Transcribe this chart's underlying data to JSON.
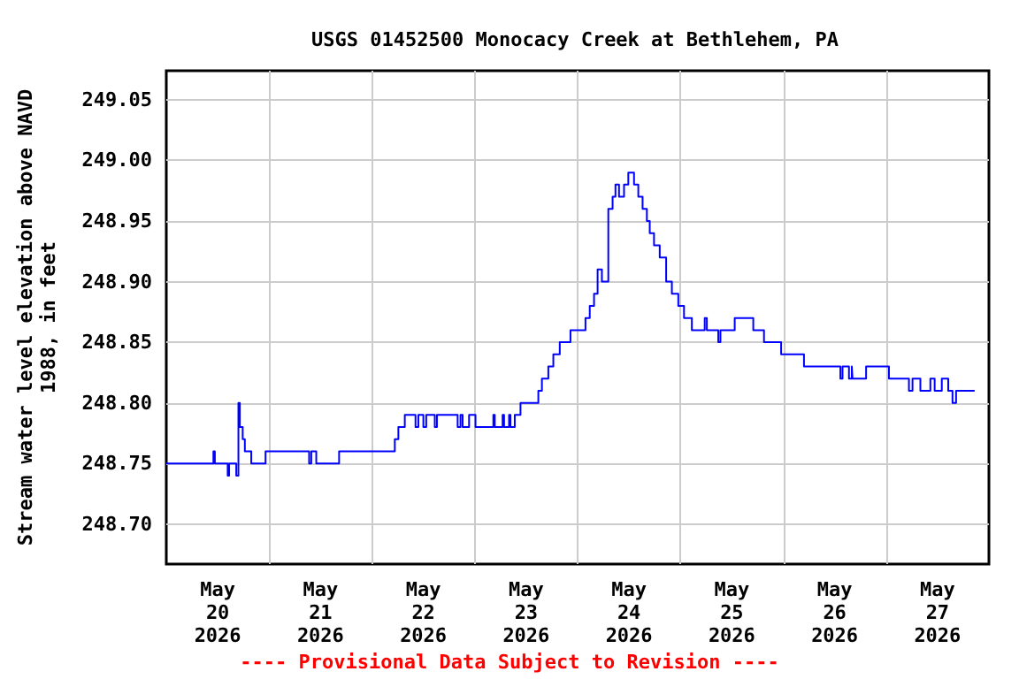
{
  "chart_data": {
    "type": "step",
    "title": "USGS 01452500 Monocacy Creek at Bethlehem, PA",
    "ylabel": "Stream water level elevation above NAVD\n1988, in feet",
    "annotations": [
      "---- Provisional Data Subject to Revision ----"
    ],
    "x": [
      "2026-05-20T00:00",
      "2026-05-20T11:00",
      "2026-05-20T11:20",
      "2026-05-20T14:20",
      "2026-05-20T14:40",
      "2026-05-20T16:20",
      "2026-05-20T16:50",
      "2026-05-20T17:10",
      "2026-05-20T17:50",
      "2026-05-20T18:20",
      "2026-05-20T19:50",
      "2026-05-20T23:10",
      "2026-05-21T09:20",
      "2026-05-21T09:50",
      "2026-05-21T11:00",
      "2026-05-21T16:20",
      "2026-05-22T05:20",
      "2026-05-22T06:10",
      "2026-05-22T07:40",
      "2026-05-22T10:10",
      "2026-05-22T10:50",
      "2026-05-22T12:00",
      "2026-05-22T12:40",
      "2026-05-22T14:40",
      "2026-05-22T15:10",
      "2026-05-22T20:00",
      "2026-05-22T20:40",
      "2026-05-22T21:10",
      "2026-05-22T22:40",
      "2026-05-23T00:10",
      "2026-05-23T04:20",
      "2026-05-23T04:40",
      "2026-05-23T06:30",
      "2026-05-23T06:50",
      "2026-05-23T08:00",
      "2026-05-23T08:20",
      "2026-05-23T09:20",
      "2026-05-23T10:40",
      "2026-05-23T14:50",
      "2026-05-23T15:40",
      "2026-05-23T17:10",
      "2026-05-23T18:20",
      "2026-05-23T19:50",
      "2026-05-23T22:20",
      "2026-05-24T01:50",
      "2026-05-24T02:50",
      "2026-05-24T03:50",
      "2026-05-24T04:40",
      "2026-05-24T05:40",
      "2026-05-24T07:10",
      "2026-05-24T08:10",
      "2026-05-24T08:50",
      "2026-05-24T09:40",
      "2026-05-24T10:50",
      "2026-05-24T11:50",
      "2026-05-24T13:10",
      "2026-05-24T14:10",
      "2026-05-24T15:10",
      "2026-05-24T16:10",
      "2026-05-24T16:50",
      "2026-05-24T17:50",
      "2026-05-24T19:10",
      "2026-05-24T20:40",
      "2026-05-24T22:00",
      "2026-05-24T23:30",
      "2026-05-25T00:50",
      "2026-05-25T02:40",
      "2026-05-25T05:40",
      "2026-05-25T06:10",
      "2026-05-25T08:50",
      "2026-05-25T09:20",
      "2026-05-25T12:40",
      "2026-05-25T17:00",
      "2026-05-25T19:30",
      "2026-05-25T23:30",
      "2026-05-26T04:50",
      "2026-05-26T13:20",
      "2026-05-26T13:50",
      "2026-05-26T15:20",
      "2026-05-26T16:00",
      "2026-05-26T16:10",
      "2026-05-26T19:20",
      "2026-05-27T00:40",
      "2026-05-27T05:20",
      "2026-05-27T06:10",
      "2026-05-27T08:00",
      "2026-05-27T10:20",
      "2026-05-27T11:20",
      "2026-05-27T13:00",
      "2026-05-27T14:30",
      "2026-05-27T15:30",
      "2026-05-27T16:20",
      "2026-05-27T20:40"
    ],
    "series": [
      {
        "color": "#0000ff",
        "values": [
          248.75,
          248.76,
          248.75,
          248.74,
          248.75,
          248.74,
          248.8,
          248.78,
          248.77,
          248.76,
          248.75,
          248.76,
          248.75,
          248.76,
          248.75,
          248.76,
          248.77,
          248.78,
          248.79,
          248.78,
          248.79,
          248.78,
          248.79,
          248.78,
          248.79,
          248.78,
          248.79,
          248.78,
          248.79,
          248.78,
          248.79,
          248.78,
          248.79,
          248.78,
          248.79,
          248.78,
          248.79,
          248.8,
          248.81,
          248.82,
          248.83,
          248.84,
          248.85,
          248.86,
          248.87,
          248.88,
          248.89,
          248.91,
          248.9,
          248.96,
          248.97,
          248.98,
          248.97,
          248.98,
          248.99,
          248.98,
          248.97,
          248.96,
          248.95,
          248.94,
          248.93,
          248.92,
          248.9,
          248.89,
          248.88,
          248.87,
          248.86,
          248.87,
          248.86,
          248.85,
          248.86,
          248.87,
          248.86,
          248.85,
          248.84,
          248.83,
          248.82,
          248.83,
          248.82,
          248.83,
          248.82,
          248.83,
          248.82,
          248.81,
          248.82,
          248.81,
          248.82,
          248.81,
          248.82,
          248.81,
          248.8,
          248.81,
          248.81
        ]
      }
    ],
    "xlim": [
      "2026-05-20T00:00",
      "2026-05-28T00:00"
    ],
    "xticks": [
      {
        "value": "2026-05-20T12:00",
        "label": "May\n20\n2026"
      },
      {
        "value": "2026-05-21T00:00",
        "label": null
      },
      {
        "value": "2026-05-21T12:00",
        "label": "May\n21\n2026"
      },
      {
        "value": "2026-05-22T00:00",
        "label": null
      },
      {
        "value": "2026-05-22T12:00",
        "label": "May\n22\n2026"
      },
      {
        "value": "2026-05-23T00:00",
        "label": null
      },
      {
        "value": "2026-05-23T12:00",
        "label": "May\n23\n2026"
      },
      {
        "value": "2026-05-24T00:00",
        "label": null
      },
      {
        "value": "2026-05-24T12:00",
        "label": "May\n24\n2026"
      },
      {
        "value": "2026-05-25T00:00",
        "label": null
      },
      {
        "value": "2026-05-25T12:00",
        "label": "May\n25\n2026"
      },
      {
        "value": "2026-05-26T00:00",
        "label": null
      },
      {
        "value": "2026-05-26T12:00",
        "label": "May\n26\n2026"
      },
      {
        "value": "2026-05-27T00:00",
        "label": null
      },
      {
        "value": "2026-05-27T12:00",
        "label": "May\n27\n2026"
      }
    ],
    "ylim": [
      248.667,
      249.074
    ],
    "yticks": [
      {
        "value": 248.7,
        "label": "248.70"
      },
      {
        "value": 248.75,
        "label": "248.75"
      },
      {
        "value": 248.8,
        "label": "248.80"
      },
      {
        "value": 248.85,
        "label": "248.85"
      },
      {
        "value": 248.9,
        "label": "248.90"
      },
      {
        "value": 248.95,
        "label": "248.95"
      },
      {
        "value": 249,
        "label": "249.00"
      },
      {
        "value": 249.05,
        "label": "249.05"
      }
    ],
    "grid": true,
    "marker": "none",
    "line_style": "solid"
  }
}
